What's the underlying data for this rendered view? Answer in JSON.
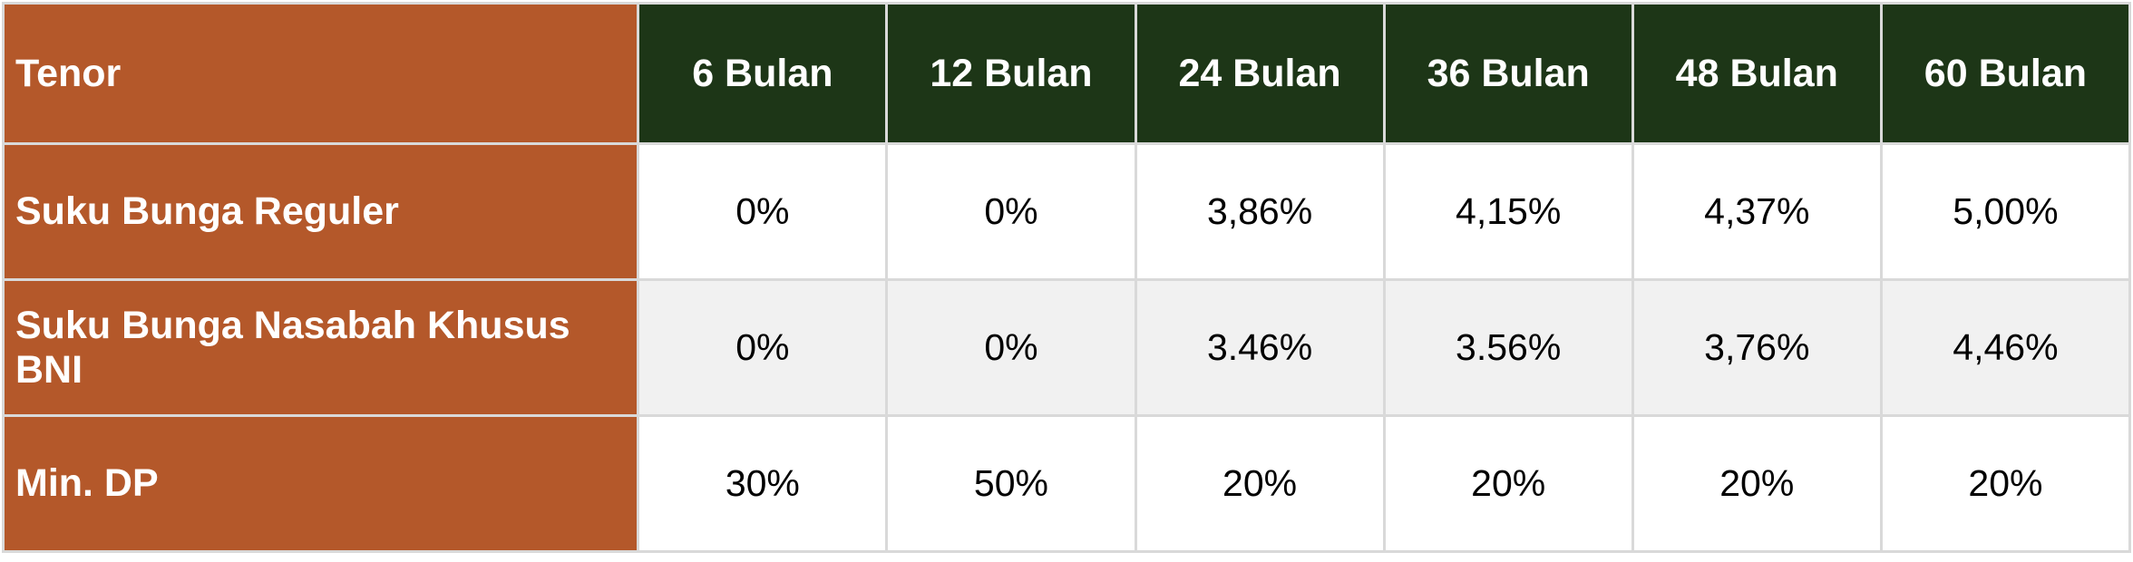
{
  "chart_data": {
    "type": "table",
    "title": "Tenor / Suku Bunga / Min. DP table",
    "columns": [
      "Tenor",
      "6 Bulan",
      "12 Bulan",
      "24 Bulan",
      "36 Bulan",
      "48 Bulan",
      "60 Bulan"
    ],
    "rows": [
      {
        "label": "Suku Bunga Reguler",
        "values": [
          "0%",
          "0%",
          "3,86%",
          "4,15%",
          "4,37%",
          "5,00%"
        ],
        "values_numeric_percent": [
          0,
          0,
          3.86,
          4.15,
          4.37,
          5.0
        ]
      },
      {
        "label": "Suku Bunga Nasabah Khusus BNI",
        "values": [
          "0%",
          "0%",
          "3.46%",
          "3.56%",
          "3,76%",
          "4,46%"
        ],
        "values_numeric_percent": [
          0,
          0,
          3.46,
          3.56,
          3.76,
          4.46
        ]
      },
      {
        "label": "Min. DP",
        "values": [
          "30%",
          "50%",
          "20%",
          "20%",
          "20%",
          "20%"
        ],
        "values_numeric_percent": [
          30,
          50,
          20,
          20,
          20,
          20
        ]
      }
    ],
    "layout": {
      "header_position": "top",
      "label_column_position": "left",
      "grid": true,
      "zebra_striping": true
    }
  },
  "colors": {
    "label_column_bg": "#b4582a",
    "header_bg": "#1d3617",
    "header_text": "#ffffff",
    "label_text": "#ffffff",
    "cell_text": "#000000",
    "row_bg": "#ffffff",
    "row_alt_bg": "#f1f1f1",
    "border": "#d9d9d9"
  }
}
